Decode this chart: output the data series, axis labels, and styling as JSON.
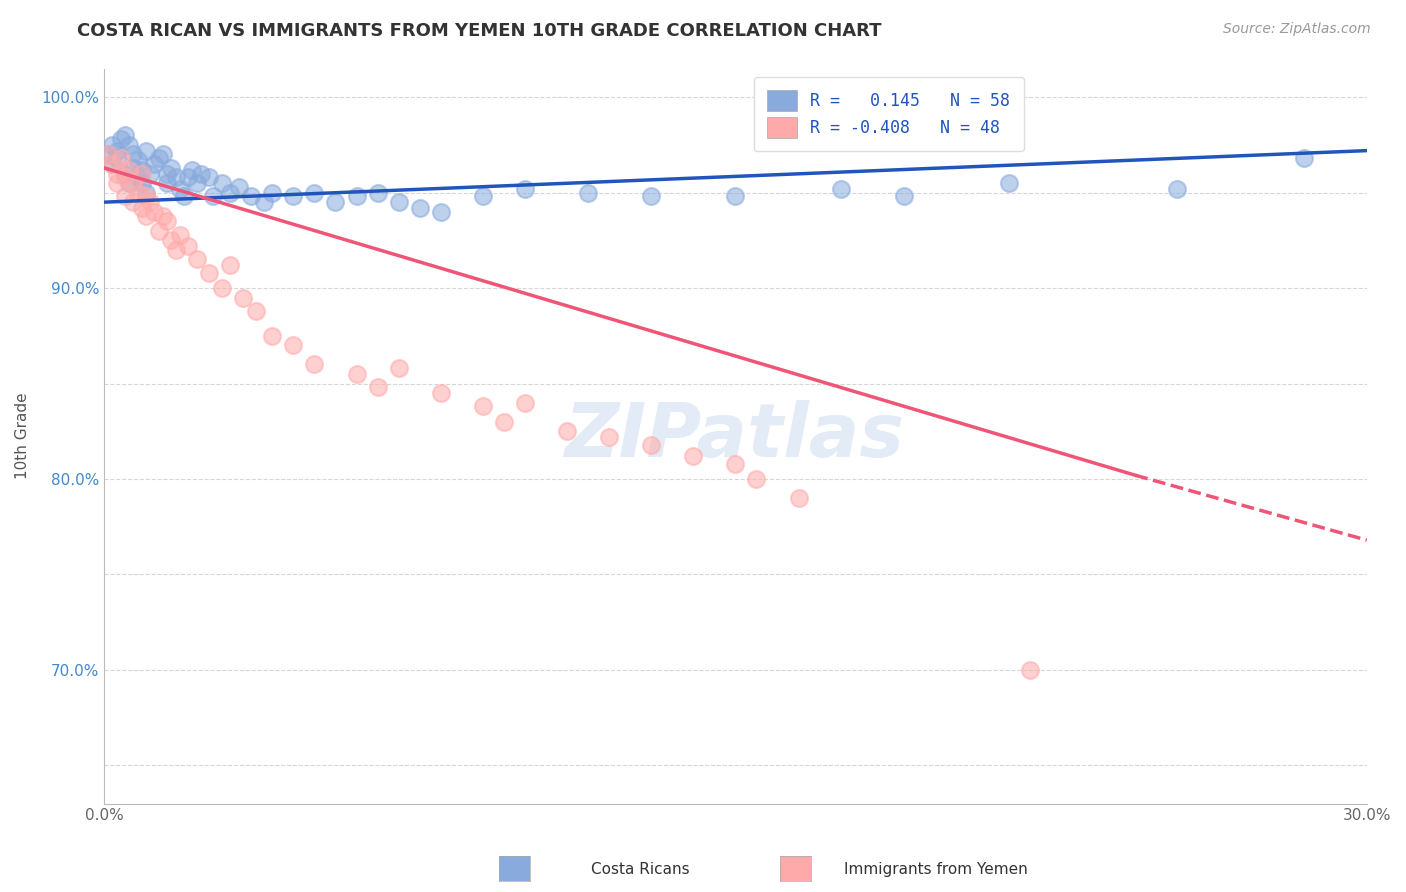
{
  "title": "COSTA RICAN VS IMMIGRANTS FROM YEMEN 10TH GRADE CORRELATION CHART",
  "source_text": "Source: ZipAtlas.com",
  "ylabel": "10th Grade",
  "xlim": [
    0.0,
    0.3
  ],
  "ylim": [
    0.63,
    1.015
  ],
  "ytick_positions": [
    0.65,
    0.7,
    0.75,
    0.8,
    0.85,
    0.9,
    0.95,
    1.0
  ],
  "ytick_labels": [
    "",
    "70.0%",
    "",
    "80.0%",
    "",
    "90.0%",
    "",
    "100.0%"
  ],
  "xtick_positions": [
    0.0,
    0.05,
    0.1,
    0.15,
    0.2,
    0.25,
    0.3
  ],
  "xtick_labels": [
    "0.0%",
    "",
    "",
    "",
    "",
    "",
    "30.0%"
  ],
  "blue_color": "#88AADD",
  "pink_color": "#FFAAAA",
  "blue_line_color": "#2255BB",
  "pink_line_color": "#EE5577",
  "watermark_color": "#C8D8EE",
  "grid_color": "#CCCCCC",
  "bg_color": "#FFFFFF",
  "legend_label1": "R =   0.145   N = 58",
  "legend_label2": "R = -0.408   N = 48",
  "blue_trend": [
    0.0,
    0.3,
    0.945,
    0.972
  ],
  "pink_trend_solid": [
    0.0,
    0.245,
    0.963,
    0.802
  ],
  "pink_trend_dash": [
    0.245,
    0.3,
    0.802,
    0.768
  ],
  "blue_points_x": [
    0.001,
    0.002,
    0.002,
    0.003,
    0.003,
    0.004,
    0.005,
    0.005,
    0.006,
    0.006,
    0.007,
    0.007,
    0.008,
    0.008,
    0.009,
    0.009,
    0.01,
    0.01,
    0.011,
    0.012,
    0.013,
    0.014,
    0.015,
    0.015,
    0.016,
    0.017,
    0.018,
    0.019,
    0.02,
    0.021,
    0.022,
    0.023,
    0.025,
    0.026,
    0.028,
    0.03,
    0.032,
    0.035,
    0.038,
    0.04,
    0.045,
    0.05,
    0.055,
    0.06,
    0.065,
    0.07,
    0.075,
    0.08,
    0.09,
    0.1,
    0.115,
    0.13,
    0.15,
    0.175,
    0.19,
    0.215,
    0.255,
    0.285
  ],
  "blue_points_y": [
    0.97,
    0.975,
    0.965,
    0.972,
    0.968,
    0.978,
    0.98,
    0.96,
    0.975,
    0.955,
    0.963,
    0.97,
    0.958,
    0.967,
    0.955,
    0.962,
    0.972,
    0.95,
    0.96,
    0.965,
    0.968,
    0.97,
    0.96,
    0.955,
    0.963,
    0.958,
    0.952,
    0.948,
    0.958,
    0.962,
    0.955,
    0.96,
    0.958,
    0.948,
    0.955,
    0.95,
    0.953,
    0.948,
    0.945,
    0.95,
    0.948,
    0.95,
    0.945,
    0.948,
    0.95,
    0.945,
    0.942,
    0.94,
    0.948,
    0.952,
    0.95,
    0.948,
    0.948,
    0.952,
    0.948,
    0.955,
    0.952,
    0.968
  ],
  "pink_points_x": [
    0.001,
    0.002,
    0.003,
    0.003,
    0.004,
    0.005,
    0.005,
    0.006,
    0.007,
    0.007,
    0.008,
    0.009,
    0.009,
    0.01,
    0.01,
    0.011,
    0.012,
    0.013,
    0.014,
    0.015,
    0.016,
    0.017,
    0.018,
    0.02,
    0.022,
    0.025,
    0.028,
    0.03,
    0.033,
    0.036,
    0.04,
    0.045,
    0.05,
    0.06,
    0.065,
    0.07,
    0.08,
    0.09,
    0.095,
    0.1,
    0.11,
    0.12,
    0.13,
    0.14,
    0.15,
    0.155,
    0.165,
    0.22
  ],
  "pink_points_y": [
    0.97,
    0.965,
    0.96,
    0.955,
    0.968,
    0.958,
    0.948,
    0.962,
    0.945,
    0.955,
    0.95,
    0.942,
    0.96,
    0.948,
    0.938,
    0.945,
    0.94,
    0.93,
    0.938,
    0.935,
    0.925,
    0.92,
    0.928,
    0.922,
    0.915,
    0.908,
    0.9,
    0.912,
    0.895,
    0.888,
    0.875,
    0.87,
    0.86,
    0.855,
    0.848,
    0.858,
    0.845,
    0.838,
    0.83,
    0.84,
    0.825,
    0.822,
    0.818,
    0.812,
    0.808,
    0.8,
    0.79,
    0.7
  ]
}
